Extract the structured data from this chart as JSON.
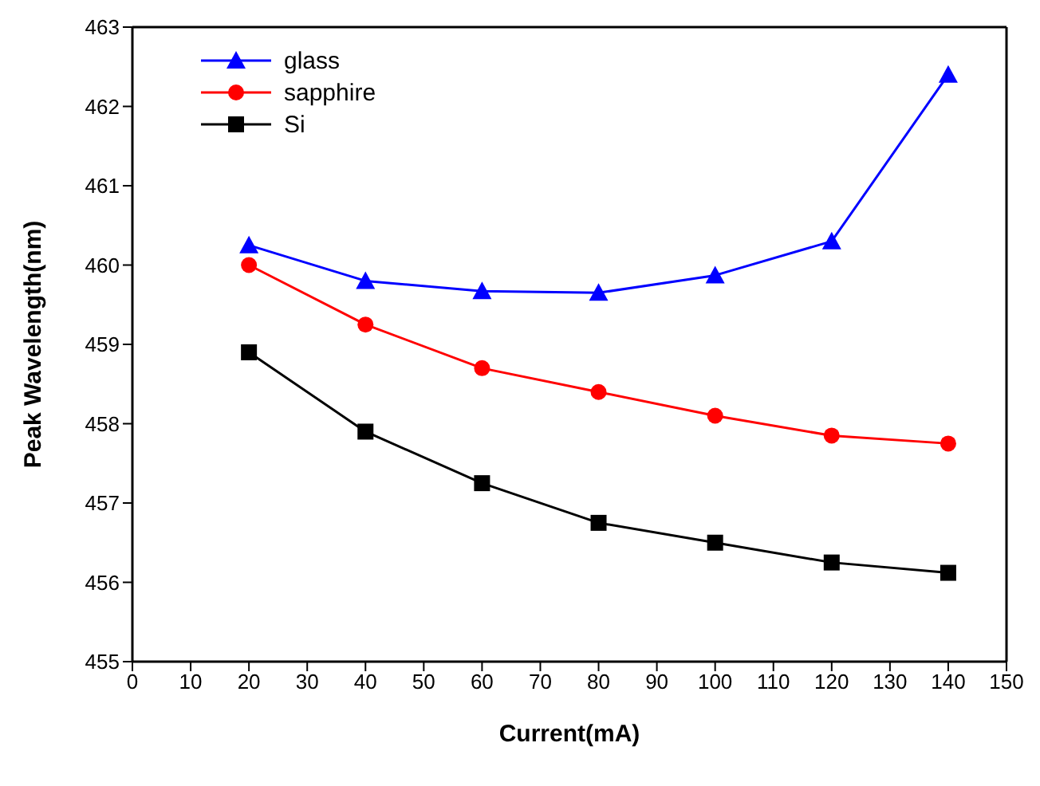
{
  "chart_data": {
    "type": "line",
    "xlabel": "Current(mA)",
    "ylabel": "Peak Wavelength(nm)",
    "x": [
      20,
      40,
      60,
      80,
      100,
      120,
      140
    ],
    "series": [
      {
        "name": "glass",
        "color": "#0000ff",
        "marker": "triangle",
        "values": [
          460.25,
          459.8,
          459.67,
          459.65,
          459.87,
          460.3,
          462.4
        ]
      },
      {
        "name": "sapphire",
        "color": "#ff0000",
        "marker": "circle",
        "values": [
          460.0,
          459.25,
          458.7,
          458.4,
          458.1,
          457.85,
          457.75
        ]
      },
      {
        "name": "Si",
        "color": "#000000",
        "marker": "square",
        "values": [
          458.9,
          457.9,
          457.25,
          456.75,
          456.5,
          456.25,
          456.12
        ]
      }
    ],
    "xlim": [
      0,
      150
    ],
    "xticks": [
      0,
      10,
      20,
      30,
      40,
      50,
      60,
      70,
      80,
      90,
      100,
      110,
      120,
      130,
      140,
      150
    ],
    "ylim": [
      455,
      463
    ],
    "yticks": [
      455,
      456,
      457,
      458,
      459,
      460,
      461,
      462,
      463
    ],
    "grid": false,
    "legend": "top left",
    "line_style": "solid"
  }
}
